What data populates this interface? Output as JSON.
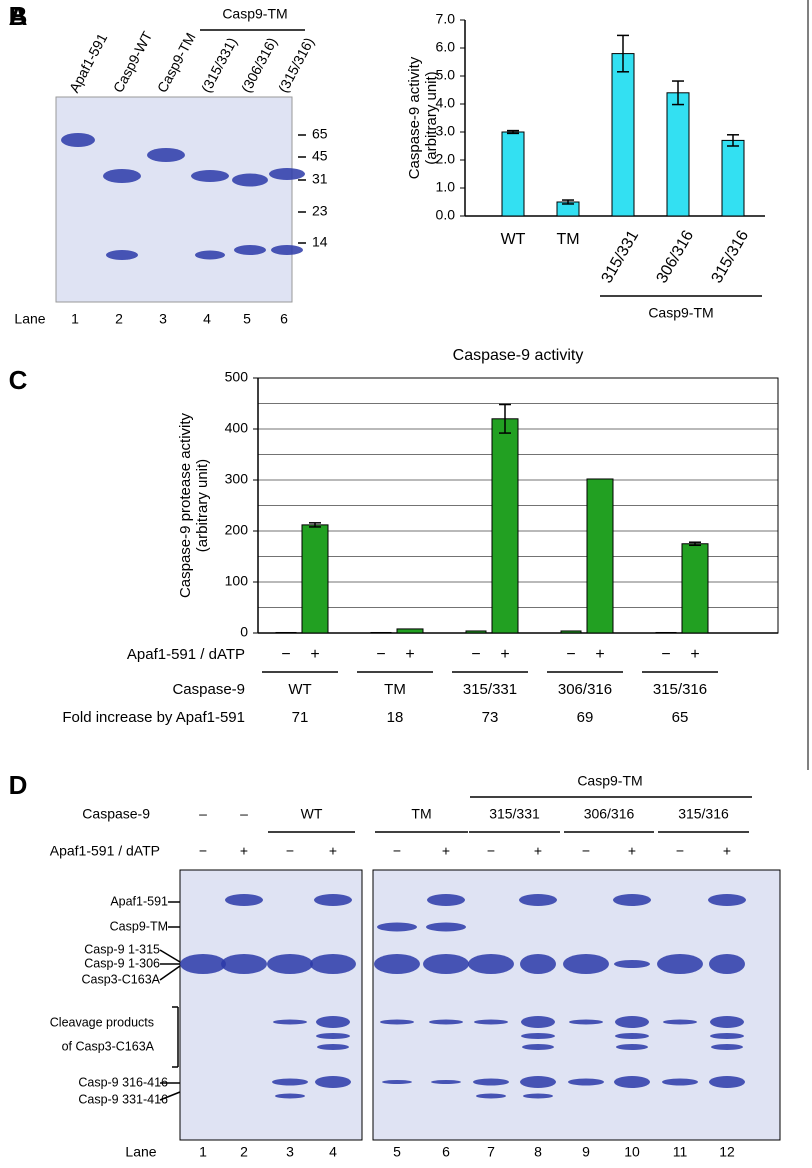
{
  "panel_a": {
    "label": "A",
    "lanes_header": [
      "Apaf1-591",
      "Casp9-WT",
      "Casp9-TM",
      "(315/331)",
      "(306/316)",
      "(315/316)"
    ],
    "group": "Casp9-TM",
    "markers": [
      65,
      45,
      31,
      23,
      14
    ],
    "lane_title": "Lane",
    "lane_numbers": [
      1,
      2,
      3,
      4,
      5,
      6
    ]
  },
  "chart_data": [
    {
      "type": "bar",
      "panel_label": "B",
      "ylabel": [
        "Caspase-9 activity",
        "(arbitrary unit)"
      ],
      "categories": [
        "WT",
        "TM",
        "315/331",
        "306/316",
        "315/316"
      ],
      "values": [
        3.0,
        0.5,
        5.8,
        4.4,
        2.7
      ],
      "errors": [
        0.05,
        0.07,
        0.65,
        0.42,
        0.2
      ],
      "color": "#33e0f2",
      "ylim": [
        0,
        7
      ],
      "yticks": [
        {
          "value": 0,
          "label": "0.0"
        },
        {
          "value": 1,
          "label": "1.0"
        },
        {
          "value": 2,
          "label": "2.0"
        },
        {
          "value": 3,
          "label": "3.0"
        },
        {
          "value": 4,
          "label": "4.0"
        },
        {
          "value": 5,
          "label": "5.0"
        },
        {
          "value": 6,
          "label": "6.0"
        },
        {
          "value": 7,
          "label": "7.0"
        }
      ],
      "group_label": "Casp9-TM"
    },
    {
      "type": "bar",
      "panel_label": "C",
      "title": "Caspase-9 activity",
      "ylabel": [
        "Caspase-9 protease activity",
        "(arbitrary unit)"
      ],
      "categories": [
        "WT",
        "TM",
        "315/331",
        "306/316",
        "315/316"
      ],
      "series": [
        {
          "name": "−",
          "color": "#22a022",
          "values": [
            1,
            1,
            4,
            4,
            1
          ]
        },
        {
          "name": "+",
          "color": "#22a022",
          "values": [
            212,
            8,
            420,
            302,
            175
          ],
          "errors": [
            4,
            null,
            28,
            null,
            3
          ]
        }
      ],
      "ylim": [
        0,
        500
      ],
      "yticks": [
        0,
        100,
        200,
        300,
        400,
        500
      ],
      "grid": true,
      "row_labels": [
        "Apaf1-591 / dATP",
        "Caspase-9",
        "Fold increase by Apaf1-591"
      ],
      "fold_increase": [
        71,
        18,
        73,
        69,
        65
      ]
    }
  ],
  "panel_d": {
    "label": "D",
    "group": "Casp9-TM",
    "row_labels": [
      "Caspase-9",
      "Apaf1-591 / dATP"
    ],
    "caspase9": [
      "–",
      "–",
      "WT",
      "TM",
      "315/331",
      "306/316",
      "315/316"
    ],
    "apaf": [
      "−",
      "+",
      "−",
      "+",
      "−",
      "+",
      "−",
      "+",
      "−",
      "+",
      "−",
      "+"
    ],
    "band_labels": [
      "Apaf1-591",
      "Casp9-TM",
      "Casp-9 1-315",
      "Casp-9 1-306",
      "Casp3-C163A",
      "Cleavage products",
      "of Casp3-C163A",
      "Casp-9 316-416",
      "Casp-9 331-416"
    ],
    "lane_title": "Lane",
    "lane_numbers": [
      1,
      2,
      3,
      4,
      5,
      6,
      7,
      8,
      9,
      10,
      11,
      12
    ]
  }
}
